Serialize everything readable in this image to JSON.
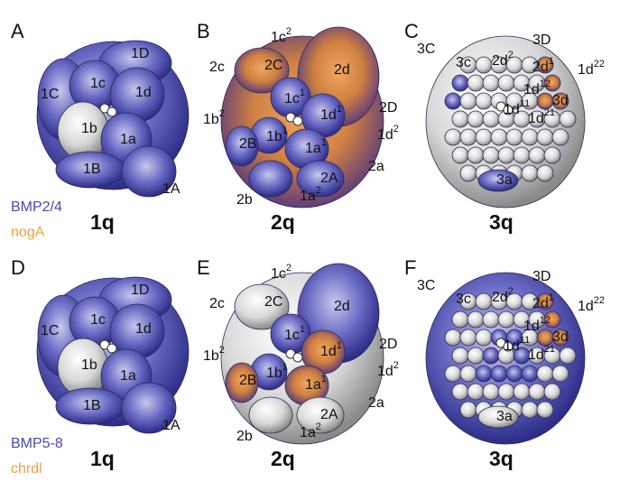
{
  "panels": [
    {
      "letter": "A",
      "stage": "1q",
      "legend": [
        {
          "text": "BMP2/4",
          "color": "#4a4aa8"
        },
        {
          "text": "nogA",
          "color": "#f0a040"
        }
      ],
      "cells": [
        {
          "base": "1D"
        },
        {
          "base": "1c"
        },
        {
          "base": "1d"
        },
        {
          "base": "1C"
        },
        {
          "base": "1b"
        },
        {
          "base": "1a"
        },
        {
          "base": "1B"
        },
        {
          "base": "1A"
        }
      ]
    },
    {
      "letter": "B",
      "stage": "2q",
      "cells": [
        {
          "base": "1c",
          "sup": "2"
        },
        {
          "base": "2c"
        },
        {
          "base": "2C"
        },
        {
          "base": "2d"
        },
        {
          "base": "2D"
        },
        {
          "base": "1c",
          "sup": "1"
        },
        {
          "base": "1d",
          "sup": "1"
        },
        {
          "base": "1b",
          "sup": "2"
        },
        {
          "base": "2B"
        },
        {
          "base": "1b",
          "sup": "1"
        },
        {
          "base": "1a",
          "sup": "1"
        },
        {
          "base": "1d",
          "sup": "2"
        },
        {
          "base": "2A"
        },
        {
          "base": "2a"
        },
        {
          "base": "2b"
        },
        {
          "base": "1a",
          "sup": "2"
        }
      ]
    },
    {
      "letter": "C",
      "stage": "3q",
      "cells": [
        {
          "base": "3C"
        },
        {
          "base": "3D"
        },
        {
          "base": "3c"
        },
        {
          "base": "2d",
          "sup": "2"
        },
        {
          "base": "2d",
          "sup": "1"
        },
        {
          "base": "1d",
          "sup": "22"
        },
        {
          "base": "1d",
          "sup": "12"
        },
        {
          "base": "3d"
        },
        {
          "base": "1d",
          "sup": "11"
        },
        {
          "base": "1d",
          "sup": "21"
        },
        {
          "base": "3a"
        }
      ]
    },
    {
      "letter": "D",
      "stage": "1q",
      "legend": [
        {
          "text": "BMP5-8",
          "color": "#4a4aa8"
        },
        {
          "text": "chrdl",
          "color": "#f0a040"
        }
      ],
      "cells": [
        {
          "base": "1D"
        },
        {
          "base": "1c"
        },
        {
          "base": "1d"
        },
        {
          "base": "1C"
        },
        {
          "base": "1b"
        },
        {
          "base": "1a"
        },
        {
          "base": "1B"
        },
        {
          "base": "1A"
        }
      ]
    },
    {
      "letter": "E",
      "stage": "2q",
      "cells": [
        {
          "base": "1c",
          "sup": "2"
        },
        {
          "base": "2c"
        },
        {
          "base": "2C"
        },
        {
          "base": "2d"
        },
        {
          "base": "2D"
        },
        {
          "base": "1c",
          "sup": "1"
        },
        {
          "base": "1d",
          "sup": "1"
        },
        {
          "base": "1b",
          "sup": "2"
        },
        {
          "base": "2B"
        },
        {
          "base": "1b",
          "sup": "1"
        },
        {
          "base": "1a",
          "sup": "1"
        },
        {
          "base": "1d",
          "sup": "2"
        },
        {
          "base": "2A"
        },
        {
          "base": "2a"
        },
        {
          "base": "2b"
        },
        {
          "base": "1a",
          "sup": "2"
        }
      ]
    },
    {
      "letter": "F",
      "stage": "3q",
      "cells": [
        {
          "base": "3C"
        },
        {
          "base": "3D"
        },
        {
          "base": "3c"
        },
        {
          "base": "2d",
          "sup": "2"
        },
        {
          "base": "2d",
          "sup": "1"
        },
        {
          "base": "1d",
          "sup": "22"
        },
        {
          "base": "1d",
          "sup": "12"
        },
        {
          "base": "3d"
        },
        {
          "base": "1d",
          "sup": "11"
        },
        {
          "base": "1d",
          "sup": "21"
        },
        {
          "base": "3a"
        }
      ]
    }
  ]
}
